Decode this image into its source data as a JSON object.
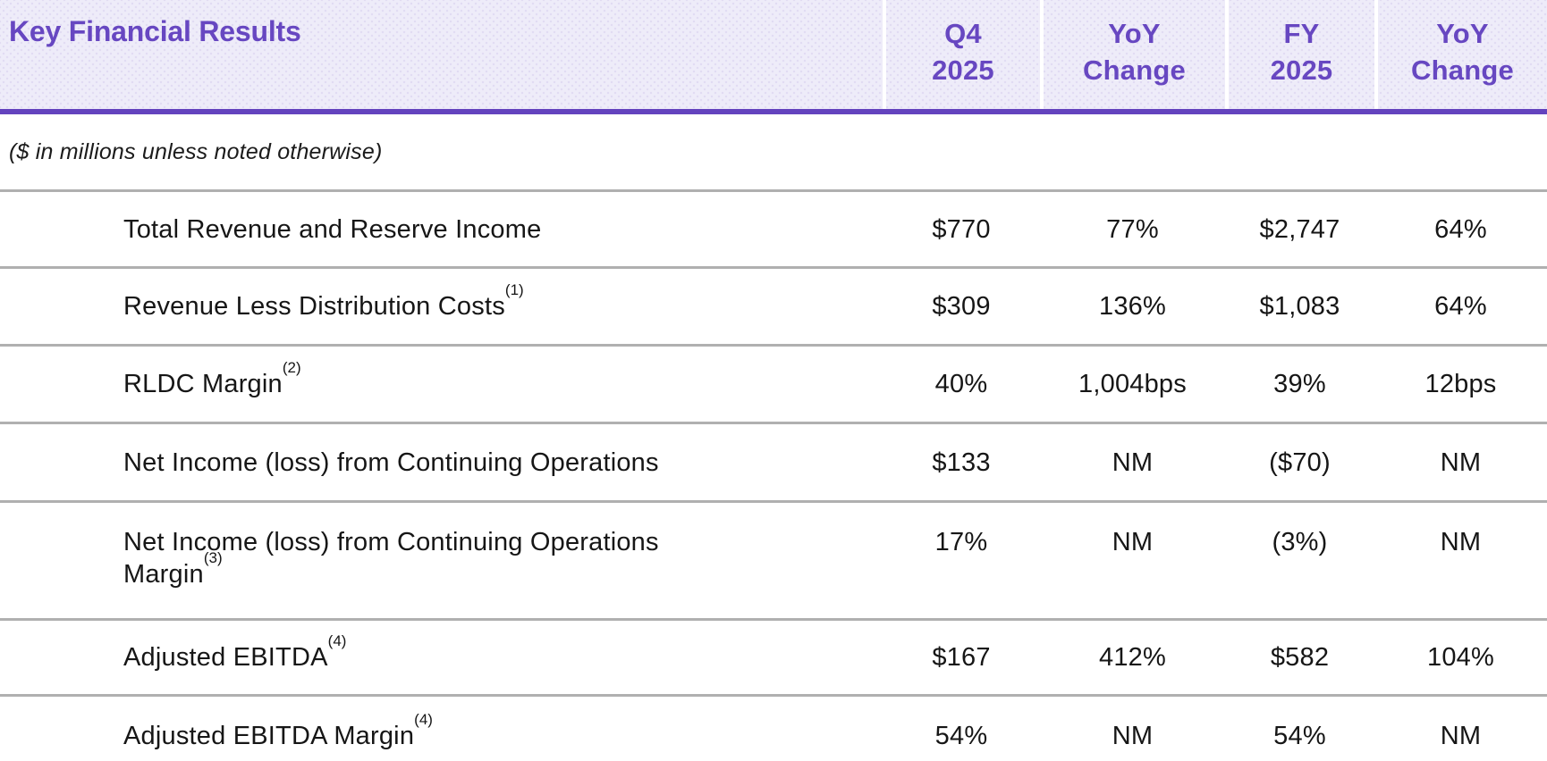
{
  "table": {
    "title": "Key Financial Results",
    "units_note": "($ in millions unless noted otherwise)",
    "columns": [
      "Q4\n2025",
      "YoY\nChange",
      "FY\n2025",
      "YoY\nChange"
    ],
    "rows": [
      {
        "label": "Total Revenue and Reserve Income",
        "footnote": "",
        "values": [
          "$770",
          "77%",
          "$2,747",
          "64%"
        ]
      },
      {
        "label": "Revenue Less Distribution Costs",
        "footnote": "(1)",
        "values": [
          "$309",
          "136%",
          "$1,083",
          "64%"
        ]
      },
      {
        "label": "RLDC Margin",
        "footnote": "(2)",
        "values": [
          "40%",
          "1,004bps",
          "39%",
          "12bps"
        ]
      },
      {
        "label": "Net Income (loss) from Continuing Operations",
        "footnote": "",
        "values": [
          "$133",
          "NM",
          "($70)",
          "NM"
        ]
      },
      {
        "label": "Net Income (loss) from Continuing Operations Margin",
        "footnote": "(3)",
        "values": [
          "17%",
          "NM",
          "(3%)",
          "NM"
        ]
      },
      {
        "label": "Adjusted EBITDA",
        "footnote": "(4)",
        "values": [
          "$167",
          "412%",
          "$582",
          "104%"
        ]
      },
      {
        "label": "Adjusted EBITDA Margin",
        "footnote": "(4)",
        "values": [
          "54%",
          "NM",
          "54%",
          "NM"
        ]
      }
    ],
    "colors": {
      "accent_purple": "#6747C1",
      "header_background": "#EEECF9",
      "header_rule_purple": "#6443BE",
      "row_divider_gray": "#B0B0B0",
      "body_text": "#161616"
    }
  }
}
